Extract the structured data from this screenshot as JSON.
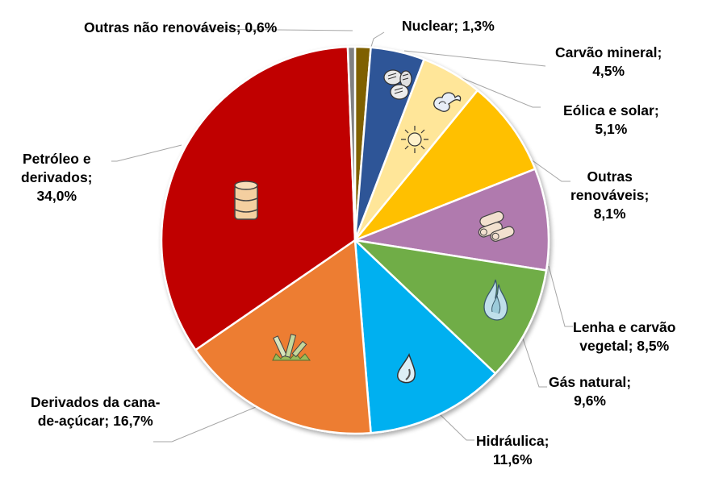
{
  "chart_data": {
    "type": "pie",
    "title": "",
    "start_angle_deg": 0,
    "direction": "clockwise",
    "unit": "%",
    "slices": [
      {
        "label": "Nuclear",
        "value": 1.3,
        "display": "Nuclear; 1,3%",
        "color": "#7F6000",
        "icon": ""
      },
      {
        "label": "Carvão mineral",
        "value": 4.5,
        "display": "Carvão mineral; 4,5%",
        "color": "#2F5597",
        "icon": "coal-icon"
      },
      {
        "label": "Eólica e solar",
        "value": 5.1,
        "display": "Eólica e solar; 5,1%",
        "color": "#FFE699",
        "icon": "wind-sun-icon"
      },
      {
        "label": "Outras renováveis",
        "value": 8.1,
        "display": "Outras renováveis; 8,1%",
        "color": "#FFC000",
        "icon": ""
      },
      {
        "label": "Lenha e carvão vegetal",
        "value": 8.5,
        "display": "Lenha e carvão vegetal; 8,5%",
        "color": "#B07AAE",
        "icon": "firewood-icon"
      },
      {
        "label": "Gás natural",
        "value": 9.6,
        "display": "Gás natural; 9,6%",
        "color": "#70AD47",
        "icon": "flame-icon"
      },
      {
        "label": "Hidráulica",
        "value": 11.6,
        "display": "Hidráulica; 11,6%",
        "color": "#00B0F0",
        "icon": "water-drop-icon"
      },
      {
        "label": "Derivados da cana-de-açúcar",
        "value": 16.7,
        "display": "Derivados da cana-de-açúcar; 16,7%",
        "color": "#ED7D31",
        "icon": "sugarcane-icon"
      },
      {
        "label": "Petróleo e derivados",
        "value": 34.0,
        "display": "Petróleo e derivados; 34,0%",
        "color": "#C00000",
        "icon": "oil-barrel-icon"
      },
      {
        "label": "Outras não renováveis",
        "value": 0.6,
        "display": "Outras não renováveis; 0,6%",
        "color": "#808080",
        "icon": ""
      }
    ],
    "legend": "none (data labels with leader lines)"
  },
  "labels": {
    "outras_nao_renov": [
      "Outras não renováveis; 0,6%"
    ],
    "nuclear": [
      "Nuclear; 1,3%"
    ],
    "carvao": [
      "Carvão mineral;",
      "4,5%"
    ],
    "eolica": [
      "Eólica e solar;",
      "5,1%"
    ],
    "outras_renov": [
      "Outras",
      "renováveis;",
      "8,1%"
    ],
    "lenha": [
      "Lenha e carvão",
      "vegetal; 8,5%"
    ],
    "gas": [
      "Gás natural;",
      "9,6%"
    ],
    "hidraulica": [
      "Hidráulica;",
      "11,6%"
    ],
    "cana": [
      "Derivados da cana-",
      "de-açúcar; 16,7%"
    ],
    "petroleo": [
      "Petróleo e",
      "derivados;",
      "34,0%"
    ]
  }
}
